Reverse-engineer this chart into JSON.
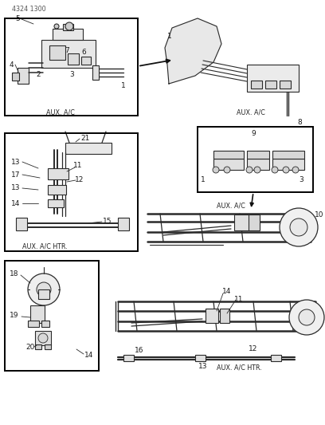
{
  "title": "4324 1300",
  "background_color": "#ffffff",
  "line_color": "#2a2a2a",
  "text_color": "#1a1a1a",
  "figsize": [
    4.08,
    5.33
  ],
  "dpi": 100,
  "lbl_aux_ac": "AUX. A/C",
  "lbl_aux_ac_htr_l": "AUX. A/C HTR.",
  "lbl_aux_ac_mid": "AUX. A/C",
  "lbl_aux_ac_htr_b": "AUX. A/C HTR.",
  "header": "4324 1300"
}
